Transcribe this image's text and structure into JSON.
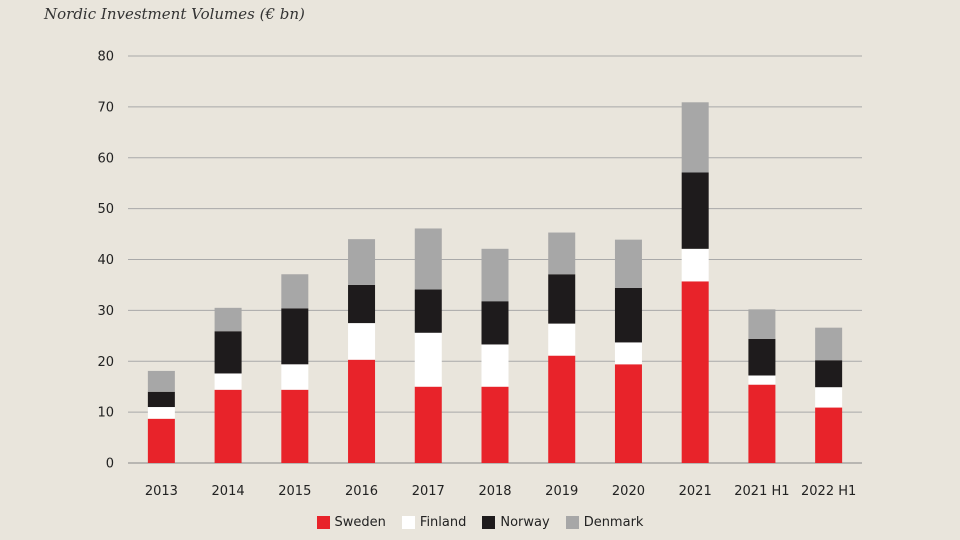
{
  "title": "Nordic Investment Volumes (€ bn)",
  "colors": {
    "Sweden": "#e8232a",
    "Finland": "#ffffff",
    "Norway": "#1e1b1c",
    "Denmark": "#a7a7a7",
    "grid": "#a9a9a9",
    "background": "#e9e5dc"
  },
  "chart_data": {
    "type": "bar",
    "stacked": true,
    "title": "Nordic Investment Volumes (€ bn)",
    "xlabel": "",
    "ylabel": "",
    "ylim": [
      0,
      80
    ],
    "yticks": [
      0,
      10,
      20,
      30,
      40,
      50,
      60,
      70,
      80
    ],
    "grid": true,
    "legend_position": "bottom-center",
    "categories": [
      "2013",
      "2014",
      "2015",
      "2016",
      "2017",
      "2018",
      "2019",
      "2020",
      "2021",
      "2021 H1",
      "2022 H1"
    ],
    "series": [
      {
        "name": "Sweden",
        "values": [
          8.7,
          14.4,
          14.4,
          20.3,
          15.0,
          15.0,
          21.1,
          19.4,
          35.7,
          15.4,
          10.9
        ]
      },
      {
        "name": "Finland",
        "values": [
          2.3,
          3.2,
          5.0,
          7.2,
          10.6,
          8.3,
          6.3,
          4.3,
          6.4,
          1.8,
          4.0
        ]
      },
      {
        "name": "Norway",
        "values": [
          3.0,
          8.3,
          11.0,
          7.5,
          8.5,
          8.5,
          9.7,
          10.7,
          15.0,
          7.2,
          5.3
        ]
      },
      {
        "name": "Denmark",
        "values": [
          4.1,
          4.6,
          6.7,
          9.0,
          12.0,
          10.3,
          8.2,
          9.5,
          13.8,
          5.8,
          6.4
        ]
      }
    ]
  }
}
